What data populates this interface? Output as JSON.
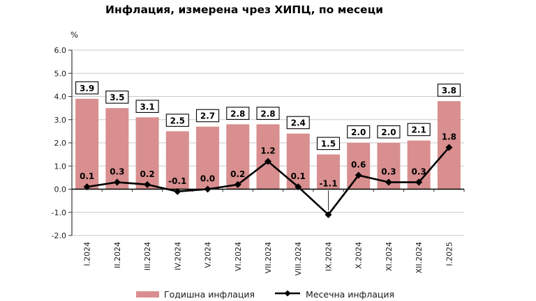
{
  "chart_data": {
    "type": "bar",
    "subtype": "bar-and-line-combo",
    "title": "Инфлация, измерена чрез ХИПЦ, по месеци",
    "ylabel": "%",
    "xlabel": "",
    "categories": [
      "I.2024",
      "II.2024",
      "III.2024",
      "IV.2024",
      "V.2024",
      "VI.2024",
      "VII.2024",
      "VIII.2024",
      "IX.2024",
      "X.2024",
      "XI.2024",
      "XII.2024",
      "I.2025"
    ],
    "series": [
      {
        "name": "Годишна инфлация",
        "type": "bar",
        "color": "#D98F8F",
        "values": [
          3.9,
          3.5,
          3.1,
          2.5,
          2.7,
          2.8,
          2.8,
          2.4,
          1.5,
          2.0,
          2.0,
          2.1,
          3.8
        ]
      },
      {
        "name": "Месечна инфлация",
        "type": "line",
        "color": "#000000",
        "marker": "diamond",
        "values": [
          0.1,
          0.3,
          0.2,
          -0.1,
          0.0,
          0.2,
          1.2,
          0.1,
          -1.1,
          0.6,
          0.3,
          0.3,
          1.8
        ]
      }
    ],
    "ylim": [
      -2.0,
      6.0
    ],
    "yticks": [
      "6.0",
      "5.0",
      "4.0",
      "3.0",
      "2.0",
      "1.0",
      "0.0",
      "-1.0",
      "-2.0"
    ],
    "grid": true,
    "gridline_color": "#c9c9c9",
    "axis_color": "#333333",
    "zero_line_color": "#000000",
    "data_label_box_fill": "#ffffff",
    "data_label_box_border": "#000000",
    "legend_position": "bottom"
  }
}
